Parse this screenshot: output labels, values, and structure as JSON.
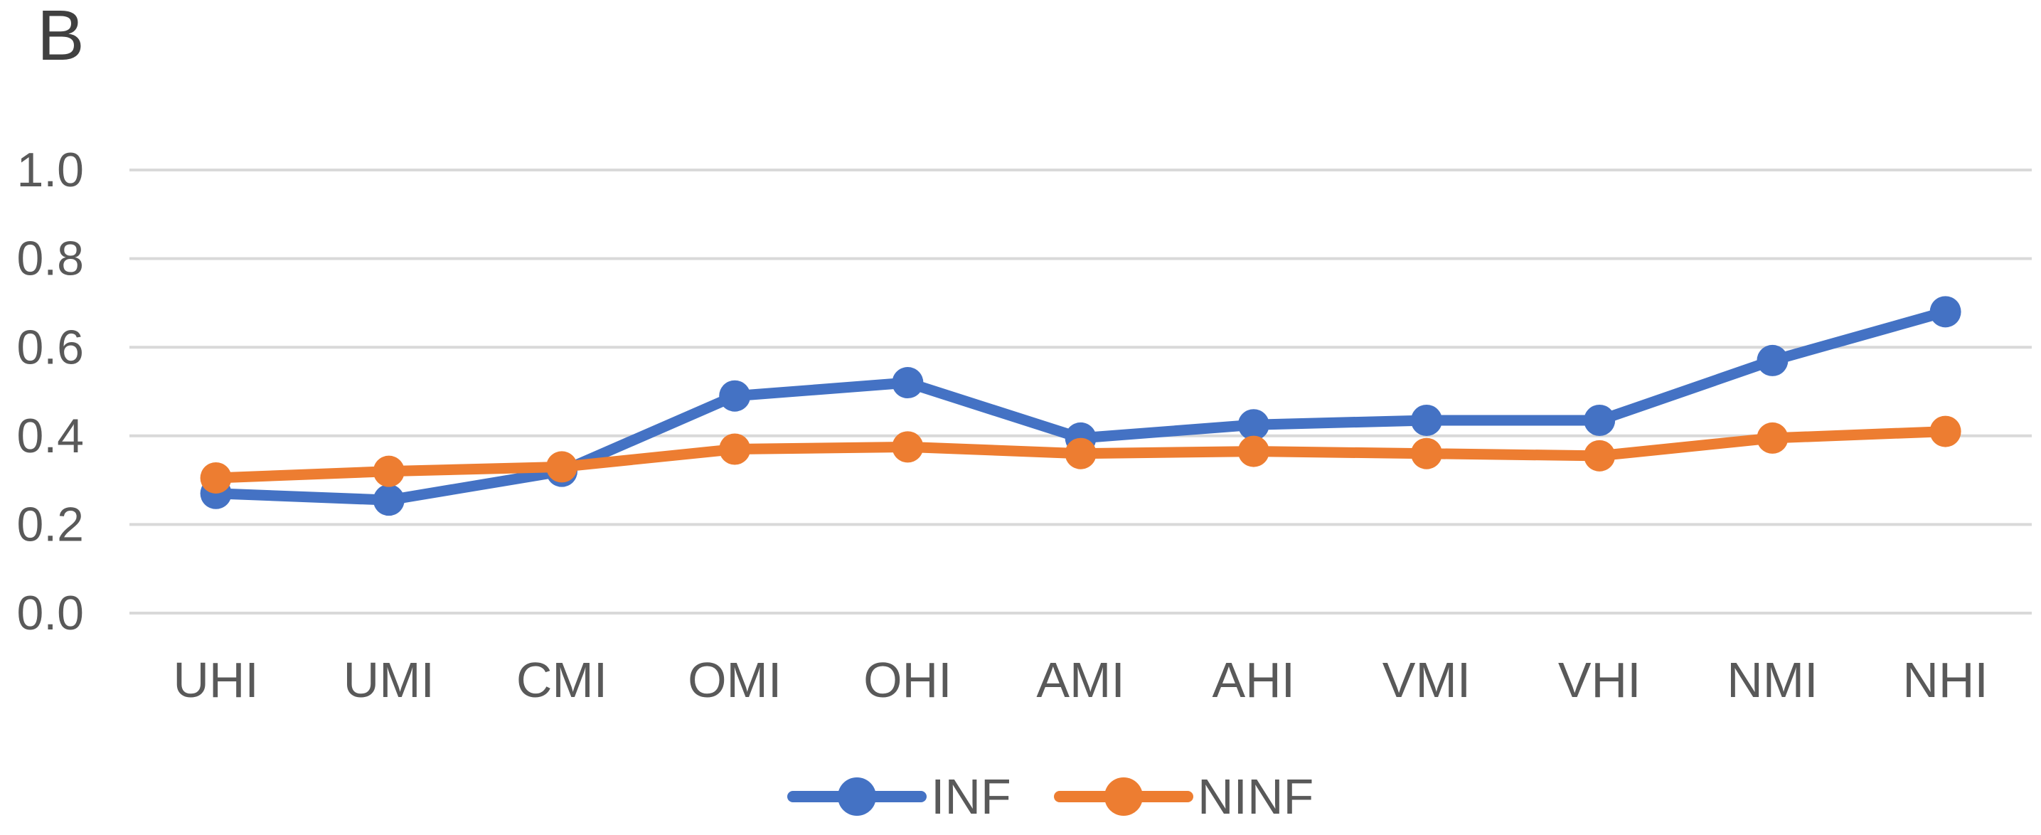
{
  "title": "B",
  "chart_data": {
    "type": "line",
    "title": "B",
    "categories": [
      "UHI",
      "UMI",
      "CMI",
      "OMI",
      "OHI",
      "AMI",
      "AHI",
      "VMI",
      "VHI",
      "NMI",
      "NHI"
    ],
    "series": [
      {
        "name": "INF",
        "color": "#4472C4",
        "values": [
          0.27,
          0.255,
          0.32,
          0.49,
          0.52,
          0.395,
          0.425,
          0.435,
          0.435,
          0.57,
          0.68
        ]
      },
      {
        "name": "NINF",
        "color": "#ED7D31",
        "values": [
          0.305,
          0.32,
          0.33,
          0.37,
          0.375,
          0.36,
          0.365,
          0.36,
          0.355,
          0.395,
          0.41
        ]
      }
    ],
    "xlabel": "",
    "ylabel": "",
    "ylim": [
      0.0,
      1.0
    ],
    "yticks": [
      0.0,
      0.2,
      0.4,
      0.6,
      0.8,
      1.0
    ],
    "ytick_labels": [
      "0.0",
      "0.2",
      "0.4",
      "0.6",
      "0.8",
      "1.0"
    ],
    "grid": "horizontal-only",
    "gridline_color": "#D9D9D9",
    "axis_text_color": "#595959",
    "title_color": "#404040",
    "background_color": "#FFFFFF",
    "legend_position": "bottom-center",
    "marker": "circle"
  }
}
